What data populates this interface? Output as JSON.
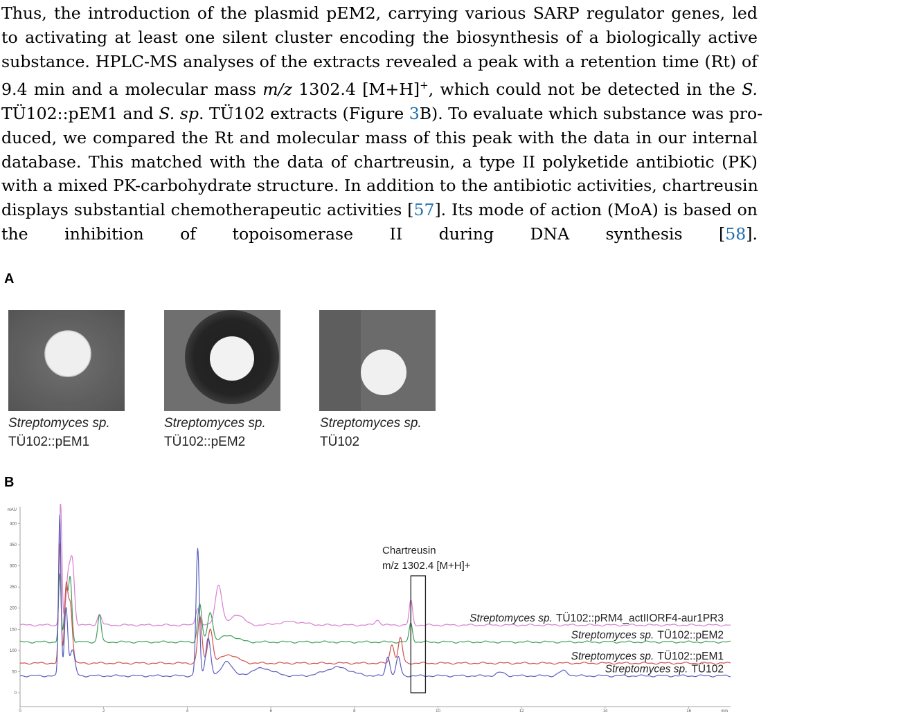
{
  "paragraph": {
    "lines": [
      "Thus, the introduction of the plasmid pEM2, carrying various SARP regulator genes, led",
      "to activating at least one silent cluster encoding the biosynthesis of a biologically active",
      "substance. HPLC-MS analyses of the extracts revealed a peak with a retention time (Rt) of",
      "9.4 min and a molecular mass m/z 1302.4 [M+H]⁺, which could not be detected in the S.",
      "TÜ102::pEM1 and S. sp. TÜ102 extracts (Figure 3B). To evaluate which substance was pro-",
      "duced, we compared the Rt and molecular mass of this peak with the data in our internal",
      "database. This matched with the data of chartreusin, a type II polyketide antibiotic (PK)",
      "with a mixed PK-carbohydrate structure. In addition to the antibiotic activities, chartreusin",
      "displays substantial chemotherapeutic activities [57]. Its mode of action (MoA) is based on",
      "the inhibition of topoisomerase II during DNA synthesis [58]."
    ],
    "figure_ref": "3",
    "ref_57": "57",
    "ref_58": "58"
  },
  "figure": {
    "panel_a_label": "A",
    "panel_b_label": "B",
    "plates": [
      {
        "species": "Streptomyces sp.",
        "strain": "TÜ102::pEM1",
        "inhibition_zone": false
      },
      {
        "species": "Streptomyces sp.",
        "strain": "TÜ102::pEM2",
        "inhibition_zone": true
      },
      {
        "species": "Streptomyces sp.",
        "strain": "TÜ102",
        "inhibition_zone": false
      }
    ]
  },
  "chart_data": {
    "type": "line",
    "y_unit_label": "mAU",
    "x_unit_label": "min",
    "x_ticks": [
      "0",
      "2",
      "4",
      "6",
      "8",
      "10",
      "12",
      "14",
      "16"
    ],
    "y_ticks": [
      "0",
      "50",
      "100",
      "150",
      "200",
      "250",
      "300",
      "350",
      "400"
    ],
    "xlim": [
      0,
      17
    ],
    "ylim": [
      0,
      440
    ],
    "annotation": {
      "line1": "Chartreusin",
      "line2": "m/z 1302.4 [M+H]+",
      "x_from": 9.35,
      "x_to": 9.7
    },
    "series": [
      {
        "name": "Streptomyces sp. TÜ102::pRM4_actIIORF4-aur1PR3",
        "name_species": "Streptomyces sp.",
        "name_strain": "TÜ102::pRM4_actIIORF4-aur1PR3",
        "color": "#d77fd0",
        "baseline": 160,
        "peaks": [
          [
            0.97,
            290,
            0.03
          ],
          [
            1.15,
            110,
            0.05
          ],
          [
            1.25,
            145,
            0.05
          ],
          [
            1.9,
            25,
            0.05
          ],
          [
            4.25,
            40,
            0.05
          ],
          [
            4.75,
            95,
            0.08
          ],
          [
            5.2,
            25,
            0.15
          ],
          [
            6.5,
            8,
            0.3
          ],
          [
            8.55,
            12,
            0.06
          ],
          [
            9.35,
            58,
            0.04
          ]
        ]
      },
      {
        "name": "Streptomyces sp. TÜ102::pEM2",
        "name_species": "Streptomyces sp.",
        "name_strain": "TÜ102::pEM2",
        "color": "#3f9e5b",
        "baseline": 120,
        "peaks": [
          [
            0.95,
            160,
            0.03
          ],
          [
            1.1,
            120,
            0.04
          ],
          [
            1.2,
            150,
            0.04
          ],
          [
            1.9,
            65,
            0.04
          ],
          [
            4.3,
            90,
            0.05
          ],
          [
            4.55,
            70,
            0.06
          ],
          [
            5.0,
            15,
            0.2
          ],
          [
            9.35,
            45,
            0.04
          ]
        ]
      },
      {
        "name": "Streptomyces sp. TÜ102::pEM1",
        "name_species": "Streptomyces sp.",
        "name_strain": "TÜ102::pEM1",
        "color": "#d1504e",
        "baseline": 70,
        "peaks": [
          [
            0.95,
            280,
            0.03
          ],
          [
            1.1,
            170,
            0.04
          ],
          [
            1.2,
            140,
            0.05
          ],
          [
            4.3,
            110,
            0.05
          ],
          [
            4.55,
            80,
            0.06
          ],
          [
            5.0,
            20,
            0.2
          ],
          [
            8.9,
            45,
            0.05
          ],
          [
            9.1,
            60,
            0.05
          ]
        ]
      },
      {
        "name": "Streptomyces sp. TÜ102",
        "name_species": "Streptomyces sp.",
        "name_strain": "TÜ102",
        "color": "#5a5fbf",
        "baseline": 40,
        "peaks": [
          [
            0.95,
            380,
            0.03
          ],
          [
            1.1,
            160,
            0.04
          ],
          [
            1.25,
            60,
            0.06
          ],
          [
            4.25,
            300,
            0.04
          ],
          [
            4.5,
            90,
            0.06
          ],
          [
            4.95,
            35,
            0.12
          ],
          [
            5.8,
            18,
            0.25
          ],
          [
            7.6,
            20,
            0.3
          ],
          [
            8.8,
            45,
            0.05
          ],
          [
            9.05,
            45,
            0.05
          ],
          [
            11.5,
            8,
            0.1
          ],
          [
            13.0,
            12,
            0.1
          ]
        ]
      }
    ]
  }
}
